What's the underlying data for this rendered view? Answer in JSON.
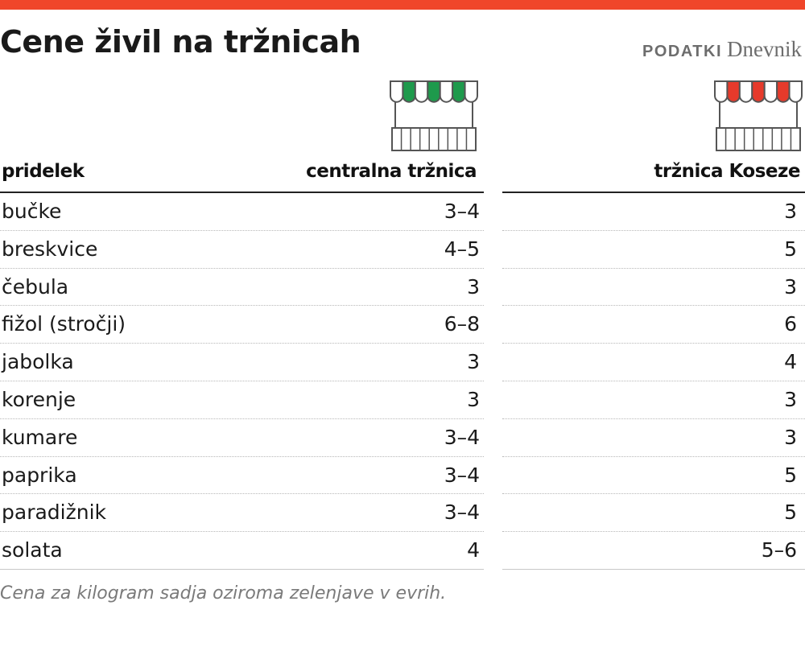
{
  "header": {
    "title": "Cene živil na tržnicah",
    "source_label": "PODATKI",
    "source_brand": "Dnevnik"
  },
  "colors": {
    "top_bar": "#f0462a",
    "central_awning": "#1e9a4c",
    "koseze_awning": "#e63a2b",
    "stall_outline": "#555555"
  },
  "icons": {
    "central": "market-stall-green-icon",
    "koseze": "market-stall-red-icon"
  },
  "chart_data": {
    "type": "table",
    "columns": [
      "pridelek",
      "centralna tržnica",
      "tržnica Koseze"
    ],
    "rows": [
      {
        "product": "bučke",
        "central": "3–4",
        "koseze": "3"
      },
      {
        "product": "breskvice",
        "central": "4–5",
        "koseze": "5"
      },
      {
        "product": "čebula",
        "central": "3",
        "koseze": "3"
      },
      {
        "product": "fižol (stročji)",
        "central": "6–8",
        "koseze": "6"
      },
      {
        "product": "jabolka",
        "central": "3",
        "koseze": "4"
      },
      {
        "product": "korenje",
        "central": "3",
        "koseze": "3"
      },
      {
        "product": "kumare",
        "central": "3–4",
        "koseze": "3"
      },
      {
        "product": "paprika",
        "central": "3–4",
        "koseze": "5"
      },
      {
        "product": "paradižnik",
        "central": "3–4",
        "koseze": "5"
      },
      {
        "product": "solata",
        "central": "4",
        "koseze": "5–6"
      }
    ],
    "note": "Cena za kilogram sadja oziroma zelenjave v evrih."
  }
}
